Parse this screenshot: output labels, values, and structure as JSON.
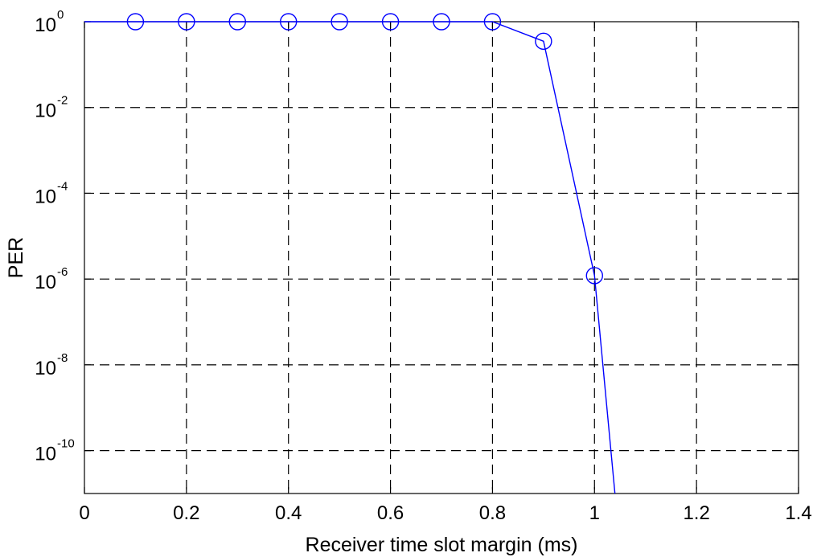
{
  "chart_data": {
    "type": "line",
    "title": "",
    "xlabel": "Receiver time slot margin (ms)",
    "ylabel": "PER",
    "x_scale": "linear",
    "y_scale": "log",
    "xlim": [
      0,
      1.4
    ],
    "ylim": [
      1e-11,
      1
    ],
    "grid": true,
    "x_ticks": [
      0,
      0.2,
      0.4,
      0.6,
      0.8,
      1,
      1.2,
      1.4
    ],
    "x_tick_labels": [
      "0",
      "0.2",
      "0.4",
      "0.6",
      "0.8",
      "1",
      "1.2",
      "1.4"
    ],
    "y_ticks": [
      1,
      0.01,
      0.0001,
      1e-06,
      1e-08,
      1e-10
    ],
    "y_tick_labels": [
      {
        "base": "10",
        "exp": "0"
      },
      {
        "base": "10",
        "exp": "-2"
      },
      {
        "base": "10",
        "exp": "-4"
      },
      {
        "base": "10",
        "exp": "-6"
      },
      {
        "base": "10",
        "exp": "-8"
      },
      {
        "base": "10",
        "exp": "-10"
      }
    ],
    "series": [
      {
        "color": "#0000ff",
        "marker": "circle",
        "line_points": [
          {
            "x": 0,
            "y": 1
          },
          {
            "x": 0.1,
            "y": 1
          },
          {
            "x": 0.2,
            "y": 1
          },
          {
            "x": 0.3,
            "y": 1
          },
          {
            "x": 0.4,
            "y": 1
          },
          {
            "x": 0.5,
            "y": 1
          },
          {
            "x": 0.6,
            "y": 1
          },
          {
            "x": 0.7,
            "y": 1
          },
          {
            "x": 0.8,
            "y": 1
          },
          {
            "x": 0.9,
            "y": 0.35
          },
          {
            "x": 1.0,
            "y": 1.2e-06
          },
          {
            "x": 1.04,
            "y": 1e-11
          }
        ],
        "marker_points": [
          {
            "x": 0.1,
            "y": 1
          },
          {
            "x": 0.2,
            "y": 1
          },
          {
            "x": 0.3,
            "y": 1
          },
          {
            "x": 0.4,
            "y": 1
          },
          {
            "x": 0.5,
            "y": 1
          },
          {
            "x": 0.6,
            "y": 1
          },
          {
            "x": 0.7,
            "y": 1
          },
          {
            "x": 0.8,
            "y": 1
          },
          {
            "x": 0.9,
            "y": 0.35
          },
          {
            "x": 1.0,
            "y": 1.2e-06
          }
        ]
      }
    ]
  }
}
